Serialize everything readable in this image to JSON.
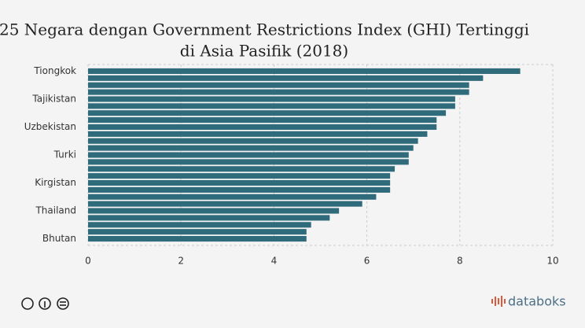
{
  "chart_data": {
    "type": "bar",
    "orientation": "horizontal",
    "title": [
      "25 Negara dengan Government Restrictions Index (GHI) Tertinggi",
      "di Asia Pasifik (2018)"
    ],
    "categories": [
      "Tiongkok",
      null,
      null,
      null,
      "Tajikistan",
      null,
      null,
      null,
      "Uzbekistan",
      null,
      null,
      null,
      "Turki",
      null,
      null,
      null,
      "Kirgistan",
      null,
      null,
      null,
      "Thailand",
      null,
      null,
      null,
      "Bhutan"
    ],
    "values": [
      9.3,
      8.5,
      8.2,
      8.2,
      7.9,
      7.9,
      7.7,
      7.5,
      7.5,
      7.3,
      7.1,
      7.0,
      6.9,
      6.9,
      6.6,
      6.5,
      6.5,
      6.5,
      6.2,
      5.9,
      5.4,
      5.2,
      4.8,
      4.7,
      4.7
    ],
    "color": "#2f6b7b",
    "xlim": [
      0,
      10
    ],
    "xticks": [
      0,
      2,
      4,
      6,
      8,
      10
    ],
    "grid": true
  },
  "footer": {
    "brand": "databoks"
  }
}
